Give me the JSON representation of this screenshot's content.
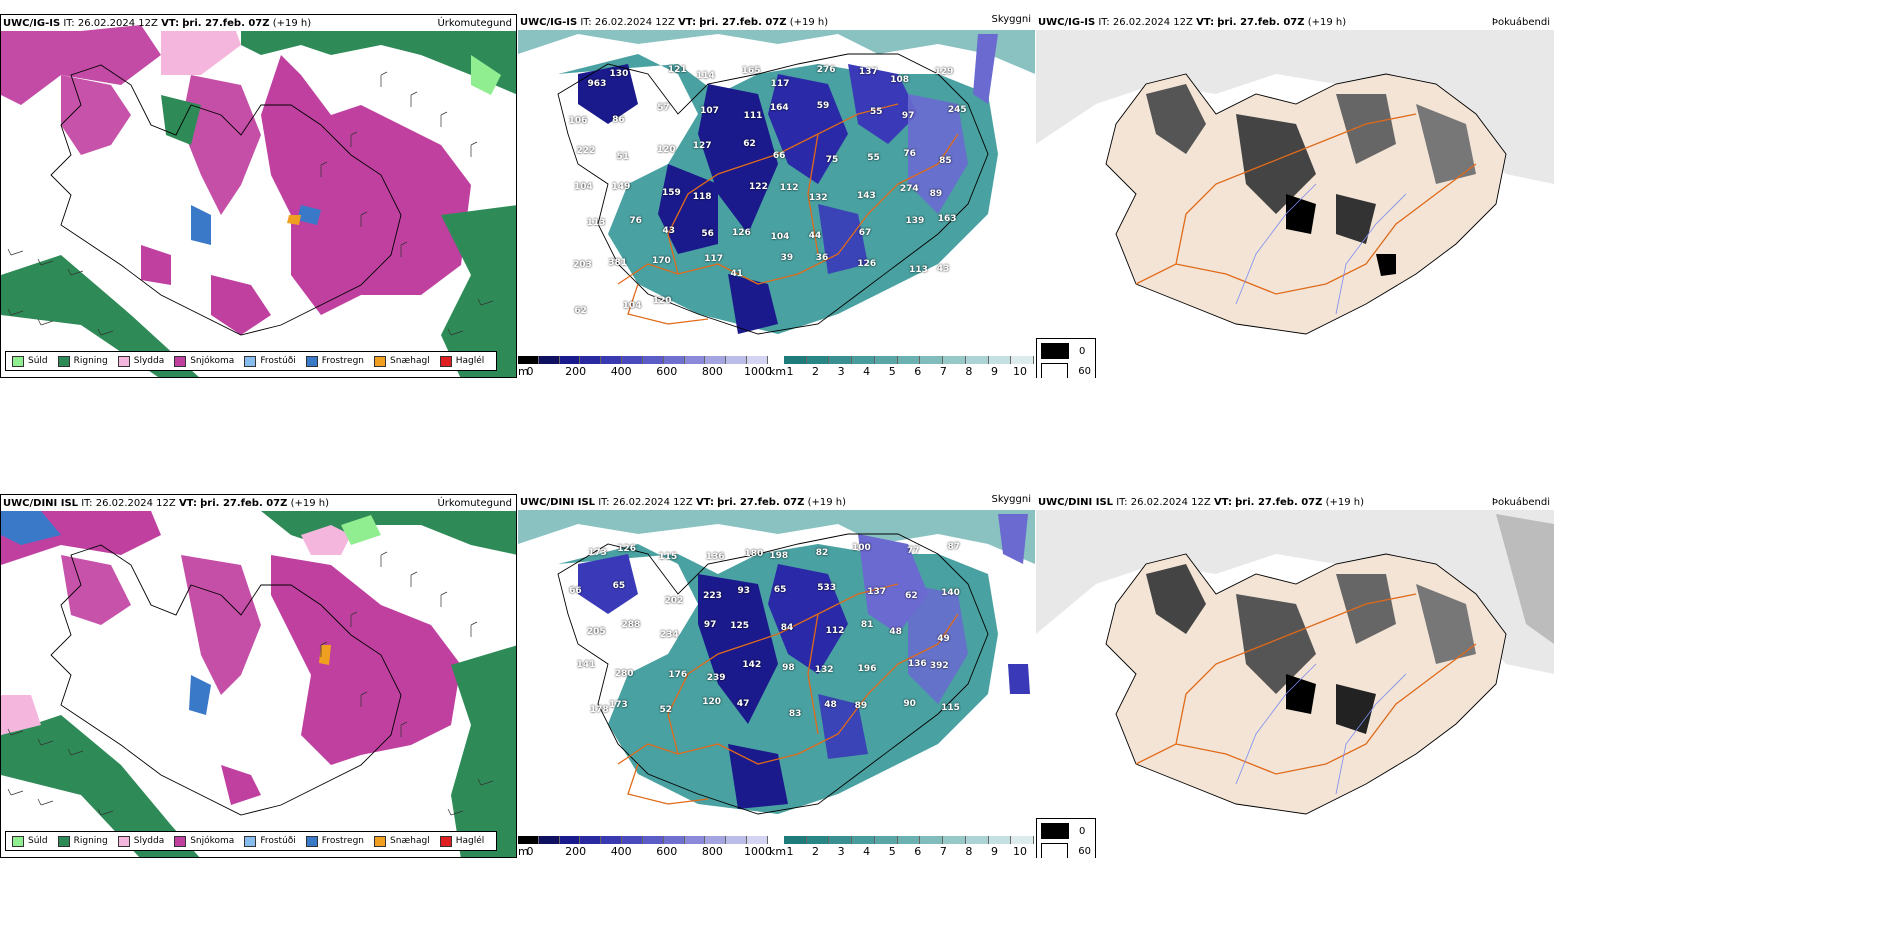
{
  "rows": [
    {
      "id": "igis",
      "model": "UWC/IG-IS",
      "it_label": "IT:",
      "it_value": "26.02.2024 12Z",
      "vt_label": "VT:",
      "vt_value": "þri. 27.feb. 07Z",
      "lead": "(+19 h)",
      "precip_title": "Úrkomutegund",
      "vis_title": "Skyggni",
      "fog_title": "Þokuábendi",
      "vis_numbers": [
        "963",
        "130",
        "121",
        "114",
        "165",
        "117",
        "276",
        "137",
        "108",
        "129",
        "106",
        "86",
        "57",
        "107",
        "111",
        "164",
        "59",
        "55",
        "97",
        "245",
        "222",
        "51",
        "120",
        "127",
        "62",
        "66",
        "75",
        "55",
        "76",
        "85",
        "104",
        "149",
        "159",
        "118",
        "122",
        "112",
        "132",
        "143",
        "274",
        "89",
        "113",
        "76",
        "43",
        "56",
        "126",
        "104",
        "44",
        "67",
        "139",
        "163",
        "203",
        "381",
        "170",
        "117",
        "41",
        "39",
        "36",
        "126",
        "113",
        "43",
        "62",
        "104",
        "120"
      ],
      "fog_legend": [
        "0",
        "60"
      ]
    },
    {
      "id": "dini",
      "model": "UWC/DINI ISL",
      "it_label": "IT:",
      "it_value": "26.02.2024 12Z",
      "vt_label": "VT:",
      "vt_value": "þri. 27.feb. 07Z",
      "lead": "(+19 h)",
      "precip_title": "Úrkomutegund",
      "vis_title": "Skyggni",
      "fog_title": "Þokuábendi",
      "vis_numbers": [
        "173",
        "126",
        "115",
        "136",
        "180",
        "198",
        "82",
        "100",
        "77",
        "87",
        "66",
        "65",
        "202",
        "223",
        "93",
        "65",
        "533",
        "137",
        "62",
        "140",
        "205",
        "288",
        "234",
        "97",
        "125",
        "84",
        "112",
        "81",
        "48",
        "49",
        "141",
        "280",
        "176",
        "239",
        "142",
        "98",
        "132",
        "196",
        "136",
        "392",
        "178",
        "173",
        "52",
        "120",
        "47",
        "83",
        "48",
        "89",
        "90",
        "115"
      ],
      "fog_legend": [
        "0",
        "60"
      ]
    }
  ],
  "precip_legend": [
    {
      "label": "Súld",
      "color": "#90ee90"
    },
    {
      "label": "Rigning",
      "color": "#2e8b57"
    },
    {
      "label": "Slydda",
      "color": "#f4b6dc"
    },
    {
      "label": "Snjókoma",
      "color": "#c040a0"
    },
    {
      "label": "Frostúði",
      "color": "#87bcee"
    },
    {
      "label": "Frostregn",
      "color": "#3a78c8"
    },
    {
      "label": "Snæhagl",
      "color": "#f0a020"
    },
    {
      "label": "Haglél",
      "color": "#e02020"
    }
  ],
  "colors": {
    "rain": "#2e8b57",
    "snow": "#c040a0",
    "sleet": "#f4b6dc",
    "drizzle": "#90ee90",
    "frz_drizzle": "#87bcee",
    "frz_rain": "#3a78c8",
    "snow_grains": "#f0a020",
    "hail": "#e02020",
    "vis_low": "#1a1a8c",
    "vis_high": "#2a9090",
    "roads": "#e06a1a",
    "land_fog": "#f3e4d6"
  },
  "cbar_m": {
    "unit": "m",
    "ticks": [
      "0",
      "200",
      "400",
      "600",
      "800",
      "1000"
    ]
  },
  "cbar_km": {
    "unit": "km",
    "ticks": [
      "1",
      "2",
      "3",
      "4",
      "5",
      "6",
      "7",
      "8",
      "9",
      "10"
    ]
  }
}
